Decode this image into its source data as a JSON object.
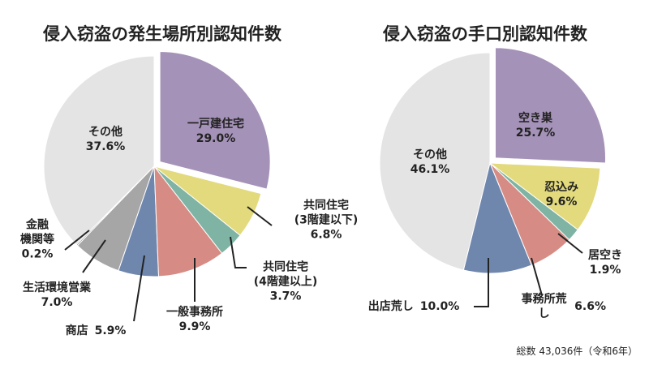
{
  "chart_data": [
    {
      "type": "pie",
      "title": "侵入窃盗の発生場所別認知件数",
      "categories": [
        "一戸建住宅",
        "共同住宅\n(3階建以下)",
        "共同住宅\n(4階建以上)",
        "一般事務所",
        "商店",
        "生活環境営業",
        "金融\n機関等",
        "その他"
      ],
      "values": [
        29.0,
        6.8,
        3.7,
        9.9,
        5.9,
        7.0,
        0.2,
        37.6
      ],
      "value_labels": [
        "29.0%",
        "6.8%",
        "3.7%",
        "9.9%",
        "5.9%",
        "7.0%",
        "0.2%",
        "37.6%"
      ],
      "colors": [
        "#a592b8",
        "#e2da7c",
        "#7fb3a3",
        "#d68c84",
        "#6f86ad",
        "#a6a6a6",
        "#8a8a8a",
        "#e4e4e4"
      ],
      "explode_first": true
    },
    {
      "type": "pie",
      "title": "侵入窃盗の手口別認知件数",
      "categories": [
        "空き巣",
        "忍込み",
        "居空き",
        "事務所荒し",
        "出店荒し",
        "その他"
      ],
      "values": [
        25.7,
        9.6,
        1.9,
        6.6,
        10.0,
        46.1
      ],
      "value_labels": [
        "25.7%",
        "9.6%",
        "1.9%",
        "6.6%",
        "10.0%",
        "46.1%"
      ],
      "colors": [
        "#a592b8",
        "#e2da7c",
        "#7fb3a3",
        "#d68c84",
        "#6f86ad",
        "#e4e4e4"
      ],
      "explode_first": true
    }
  ],
  "footnote": "総数 43,036件（令和6年）"
}
